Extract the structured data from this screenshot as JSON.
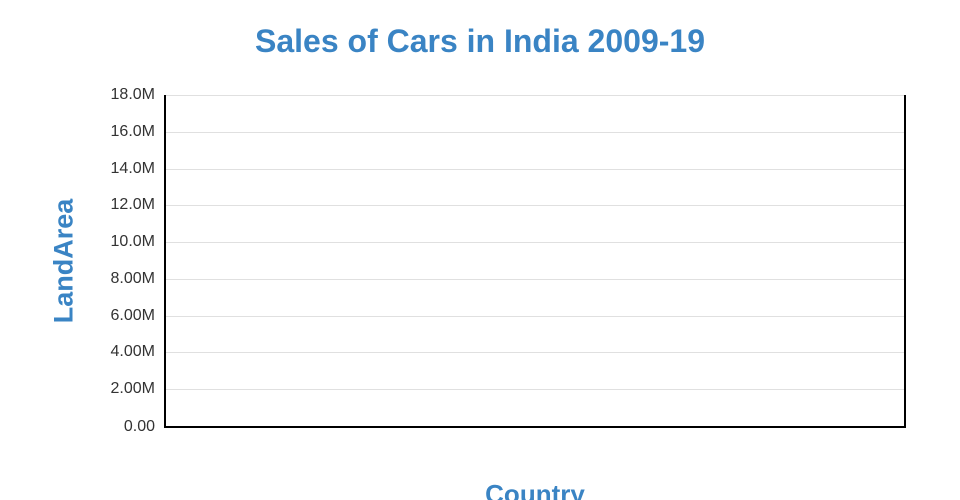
{
  "chart_data": {
    "type": "bar",
    "title": "Sales of Cars in India 2009-19",
    "xlabel": "Country",
    "ylabel": "LandArea",
    "categories": [],
    "series": [],
    "values": [],
    "y_axis": {
      "tick_labels": [
        "18.0M",
        "16.0M",
        "14.0M",
        "12.0M",
        "10.0M",
        "8.00M",
        "6.00M",
        "4.00M",
        "2.00M",
        "0.00"
      ],
      "min": 0,
      "max": 18000000,
      "tick_interval": 2000000
    },
    "x_axis": {
      "tick_labels": []
    },
    "grid": "horizontal",
    "legend": "none"
  },
  "colors": {
    "accent_blue": "#3a84c4",
    "tick_label": "#333333",
    "gridline": "#e0e0e0",
    "axis_line": "#000000",
    "background": "#ffffff"
  }
}
